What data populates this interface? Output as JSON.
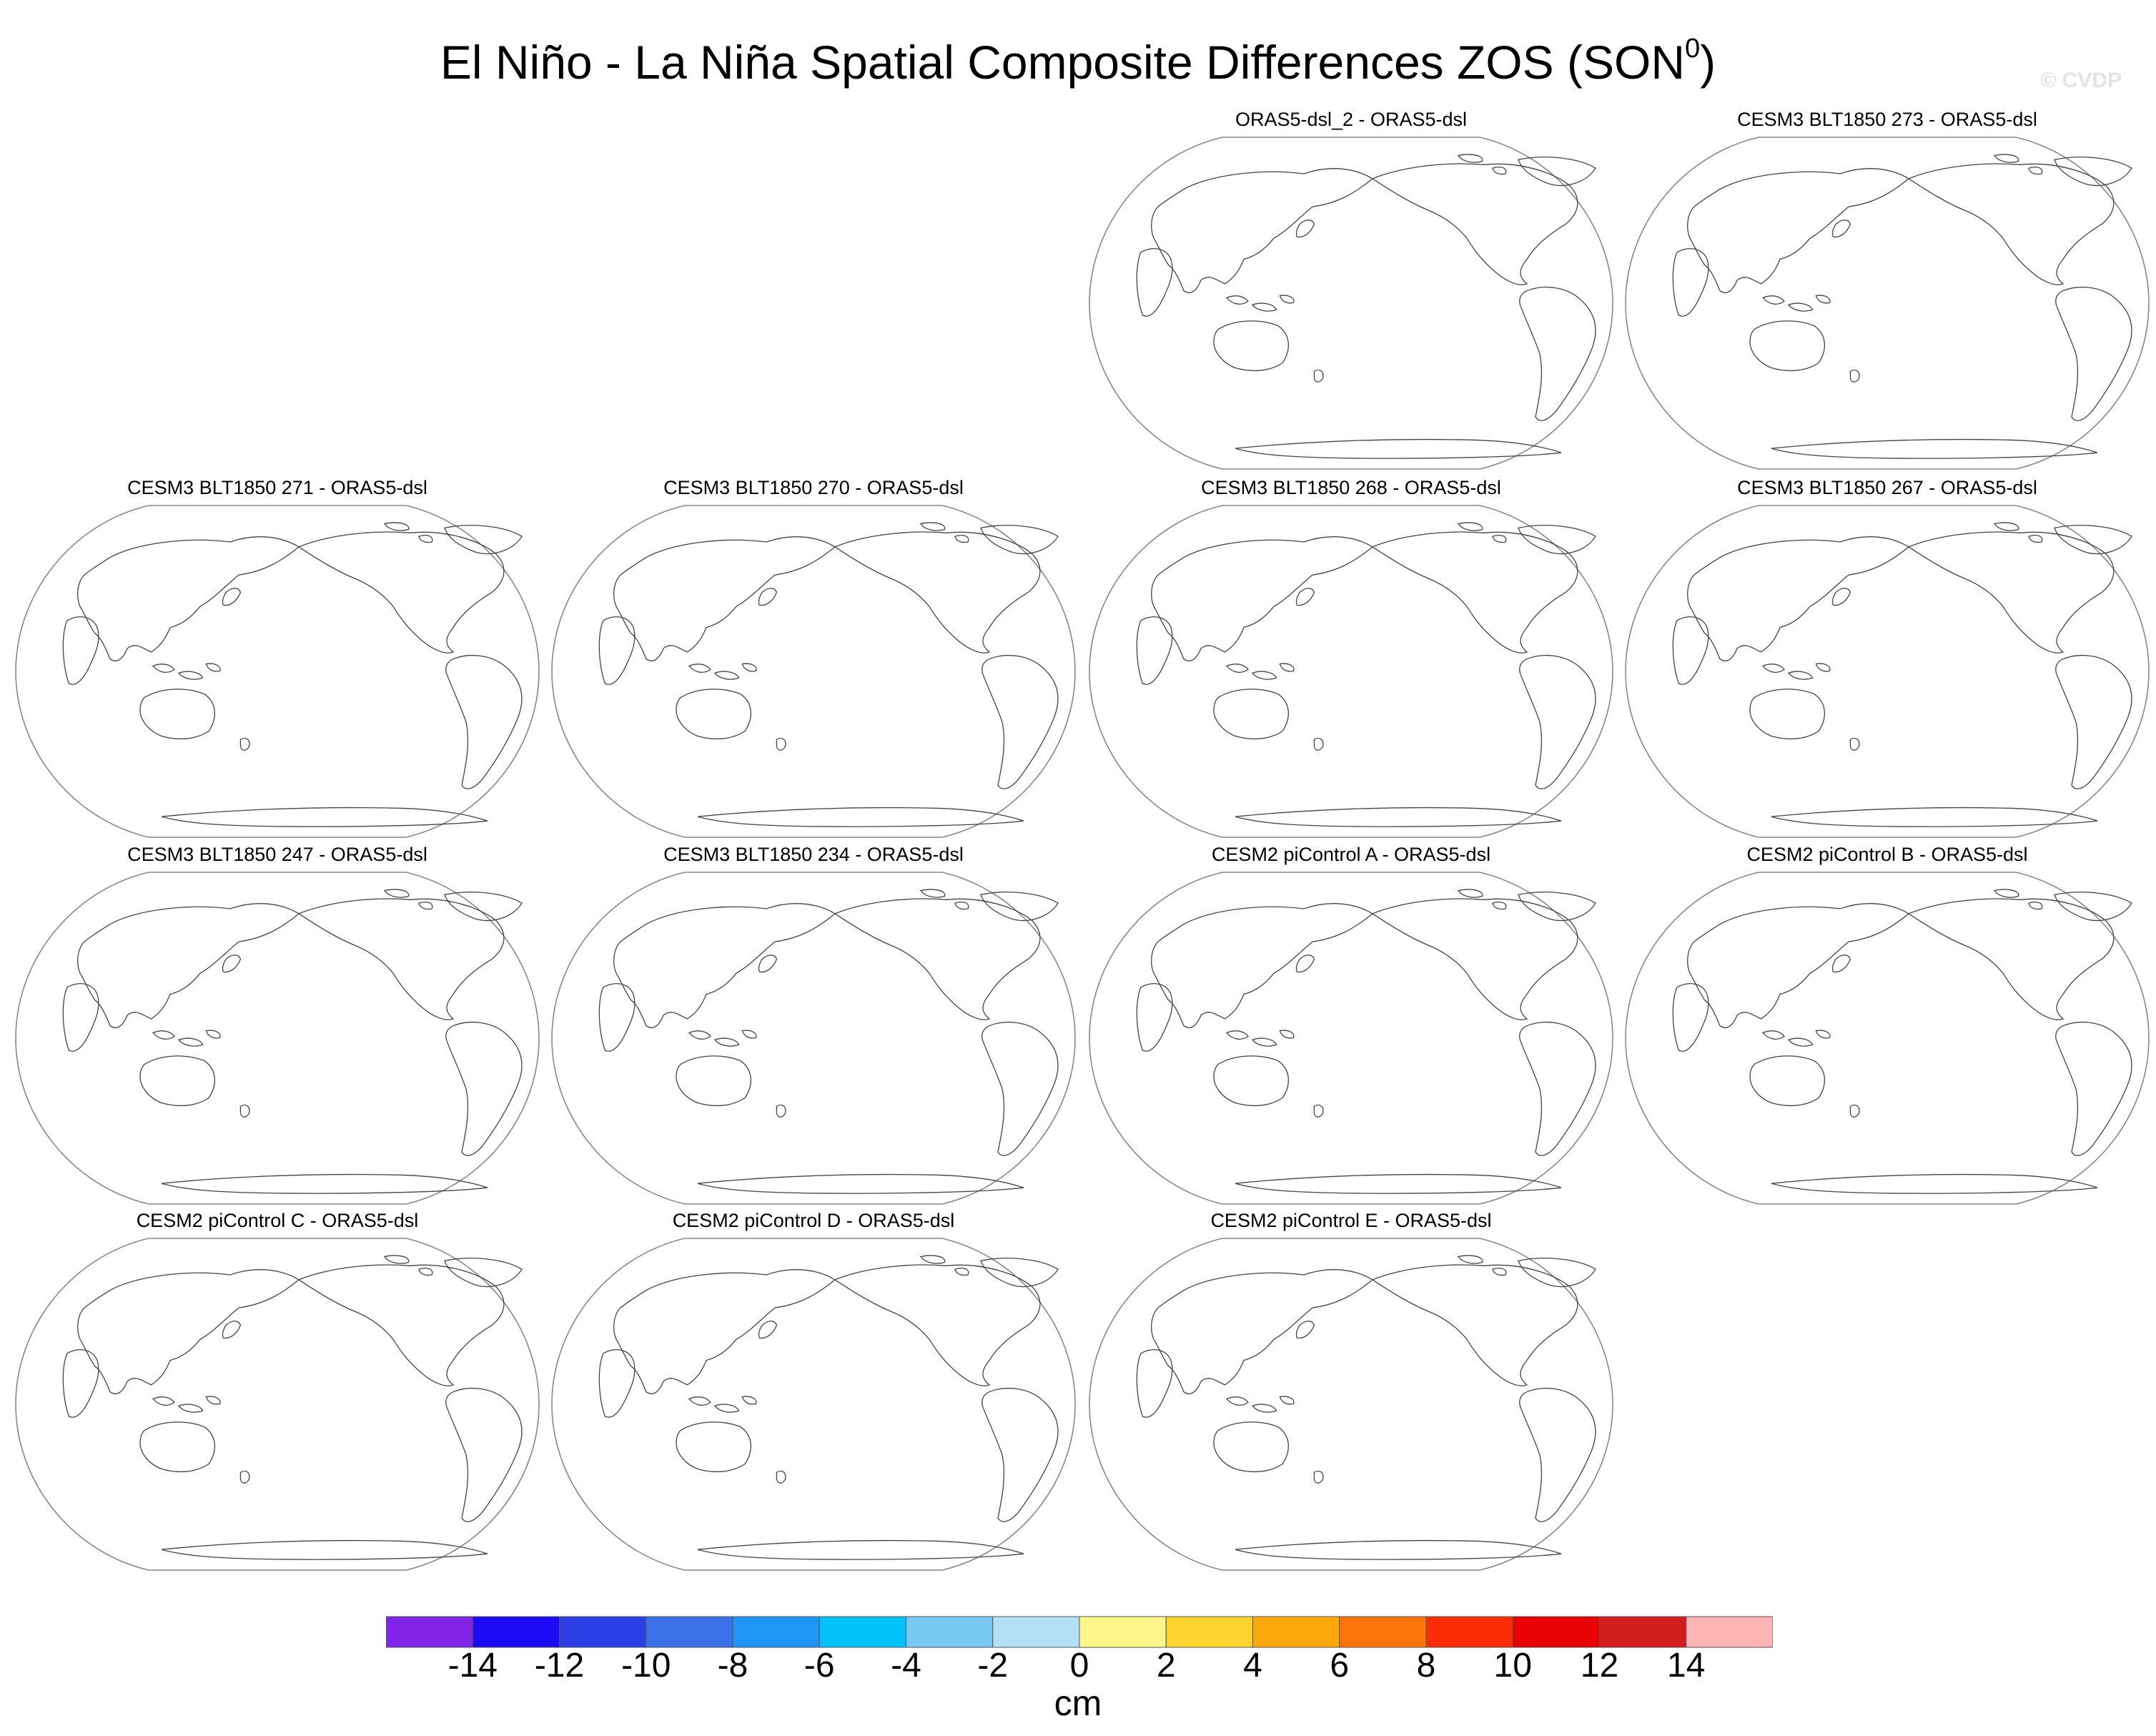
{
  "title": {
    "text": "El Niño - La Niña Spatial Composite Differences ZOS (SON",
    "superscript": "0",
    "suffix": ")"
  },
  "watermark": "© CVDP",
  "panels": [
    {
      "id": "orac-2",
      "label": "ORAS5-dsl_2 - ORAS5-dsl"
    },
    {
      "id": "blt-273",
      "label": "CESM3 BLT1850 273 - ORAS5-dsl"
    },
    {
      "id": "blt-271",
      "label": "CESM3 BLT1850 271 - ORAS5-dsl"
    },
    {
      "id": "blt-270",
      "label": "CESM3 BLT1850 270 - ORAS5-dsl"
    },
    {
      "id": "blt-268",
      "label": "CESM3 BLT1850 268 - ORAS5-dsl"
    },
    {
      "id": "blt-267",
      "label": "CESM3 BLT1850 267 - ORAS5-dsl"
    },
    {
      "id": "blt-247",
      "label": "CESM3 BLT1850 247 - ORAS5-dsl"
    },
    {
      "id": "blt-234",
      "label": "CESM3 BLT1850 234 - ORAS5-dsl"
    },
    {
      "id": "pic-a",
      "label": "CESM2 piControl A - ORAS5-dsl"
    },
    {
      "id": "pic-b",
      "label": "CESM2 piControl B - ORAS5-dsl"
    },
    {
      "id": "pic-c",
      "label": "CESM2 piControl C - ORAS5-dsl"
    },
    {
      "id": "pic-d",
      "label": "CESM2 piControl D - ORAS5-dsl"
    },
    {
      "id": "pic-e",
      "label": "CESM2 piControl E - ORAS5-dsl"
    }
  ],
  "colorbar": {
    "units": "cm",
    "colors": [
      "#8223e8",
      "#1c0af5",
      "#2c3fe6",
      "#3a70e8",
      "#1f96f3",
      "#05c1fb",
      "#77c8f3",
      "#b4def3",
      "#fff68a",
      "#fcd42d",
      "#fca80e",
      "#fd7409",
      "#fb2b05",
      "#e80004",
      "#d21f1d",
      "#fdb4b4"
    ],
    "ticks": [
      "-14",
      "-12",
      "-10",
      "-8",
      "-6",
      "-4",
      "-2",
      "0",
      "2",
      "4",
      "6",
      "8",
      "10",
      "12",
      "14"
    ]
  }
}
